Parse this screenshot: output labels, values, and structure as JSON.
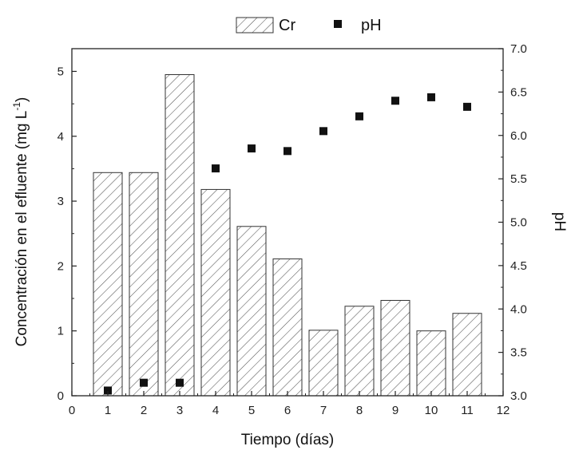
{
  "chart_data": {
    "type": "bar",
    "x": [
      1,
      2,
      3,
      4,
      5,
      6,
      7,
      8,
      9,
      10,
      11
    ],
    "series": [
      {
        "name": "Cr",
        "type": "bar",
        "axis": "left",
        "values": [
          3.44,
          3.44,
          4.95,
          3.18,
          2.61,
          2.11,
          1.01,
          1.38,
          1.47,
          1.0,
          1.27
        ]
      },
      {
        "name": "pH",
        "type": "scatter",
        "axis": "right",
        "values": [
          3.06,
          3.15,
          3.15,
          5.62,
          5.85,
          5.82,
          6.05,
          6.22,
          6.4,
          6.44,
          6.33
        ]
      }
    ],
    "xlabel": "Tiempo (días)",
    "ylabel_main": "Concentración en el efluente (mg L",
    "ylabel_sup": "-1",
    "ylabel_end": ")",
    "y2label": "pH",
    "xlim": [
      0,
      12
    ],
    "ylim": [
      0,
      5.35
    ],
    "y2lim": [
      3.0,
      7.0
    ],
    "xticks": [
      "0",
      "1",
      "2",
      "3",
      "4",
      "5",
      "6",
      "7",
      "8",
      "9",
      "10",
      "11",
      "12"
    ],
    "yticks": [
      "0",
      "1",
      "2",
      "3",
      "4",
      "5"
    ],
    "y2ticks": [
      "3.0",
      "3.5",
      "4.0",
      "4.5",
      "5.0",
      "5.5",
      "6.0",
      "6.5",
      "7.0"
    ],
    "legend_position": "top",
    "grid": false,
    "colors": {
      "bar_stroke": "#333333",
      "hatch": "#555555",
      "marker": "#111111",
      "axis": "#222222"
    }
  }
}
